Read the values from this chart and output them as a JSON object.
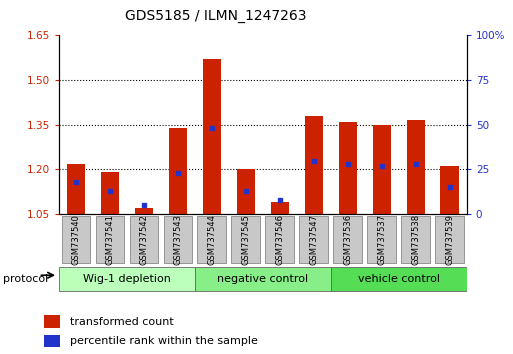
{
  "title": "GDS5185 / ILMN_1247263",
  "samples": [
    "GSM737540",
    "GSM737541",
    "GSM737542",
    "GSM737543",
    "GSM737544",
    "GSM737545",
    "GSM737546",
    "GSM737547",
    "GSM737536",
    "GSM737537",
    "GSM737538",
    "GSM737539"
  ],
  "transformed_count": [
    1.22,
    1.19,
    1.07,
    1.34,
    1.57,
    1.2,
    1.09,
    1.38,
    1.36,
    1.35,
    1.365,
    1.21
  ],
  "percentile_rank": [
    18,
    13,
    5,
    23,
    48,
    13,
    8,
    30,
    28,
    27,
    28,
    15
  ],
  "ylim_left": [
    1.05,
    1.65
  ],
  "ylim_right": [
    0,
    100
  ],
  "yticks_left": [
    1.05,
    1.2,
    1.35,
    1.5,
    1.65
  ],
  "yticks_right": [
    0,
    25,
    50,
    75,
    100
  ],
  "bar_color": "#cc2200",
  "dot_color": "#2233cc",
  "groups": [
    {
      "label": "Wig-1 depletion",
      "indices": [
        0,
        1,
        2,
        3
      ],
      "color": "#bbffbb"
    },
    {
      "label": "negative control",
      "indices": [
        4,
        5,
        6,
        7
      ],
      "color": "#88ee88"
    },
    {
      "label": "vehicle control",
      "indices": [
        8,
        9,
        10,
        11
      ],
      "color": "#55dd55"
    }
  ],
  "protocol_label": "protocol",
  "legend_red": "transformed count",
  "legend_blue": "percentile rank within the sample",
  "tick_color_left": "#cc2200",
  "tick_color_right": "#2233cc",
  "bar_width": 0.55,
  "baseline": 1.05,
  "sample_box_color": "#c8c8c8",
  "sample_box_edge": "#888888"
}
